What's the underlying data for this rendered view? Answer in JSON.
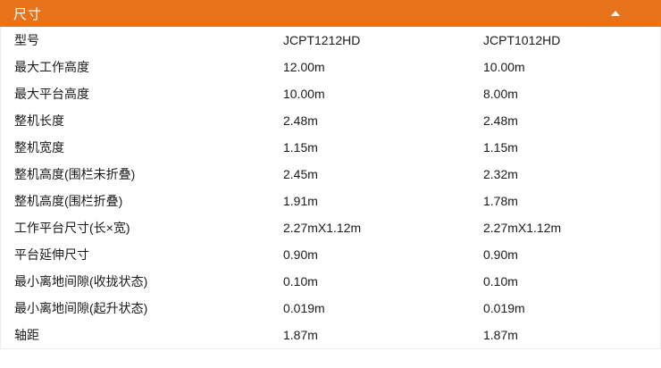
{
  "colors": {
    "accent_orange": "#e7731a",
    "header_text": "#ffffff",
    "table_border": "#ececec",
    "body_text": "#1a1a1a"
  },
  "accordion": {
    "title": "尺寸",
    "state": "expanded",
    "collapse_icon": "triangle-up"
  },
  "table": {
    "rows": [
      {
        "label": "型号",
        "col1": "JCPT1212HD",
        "col2": "JCPT1012HD"
      },
      {
        "label": "最大工作高度",
        "col1": "12.00m",
        "col2": "10.00m"
      },
      {
        "label": "最大平台高度",
        "col1": "10.00m",
        "col2": "8.00m"
      },
      {
        "label": "整机长度",
        "col1": "2.48m",
        "col2": "2.48m"
      },
      {
        "label": "整机宽度",
        "col1": "1.15m",
        "col2": "1.15m"
      },
      {
        "label": "整机高度(围栏未折叠)",
        "col1": "2.45m",
        "col2": "2.32m"
      },
      {
        "label": "整机高度(围栏折叠)",
        "col1": "1.91m",
        "col2": "1.78m"
      },
      {
        "label": "工作平台尺寸(长×宽)",
        "col1": "2.27mX1.12m",
        "col2": "2.27mX1.12m"
      },
      {
        "label": "平台延伸尺寸",
        "col1": "0.90m",
        "col2": "0.90m"
      },
      {
        "label": "最小离地间隙(收拢状态)",
        "col1": "0.10m",
        "col2": "0.10m"
      },
      {
        "label": "最小离地间隙(起升状态)",
        "col1": "0.019m",
        "col2": "0.019m"
      },
      {
        "label": "轴距",
        "col1": "1.87m",
        "col2": "1.87m"
      }
    ]
  }
}
